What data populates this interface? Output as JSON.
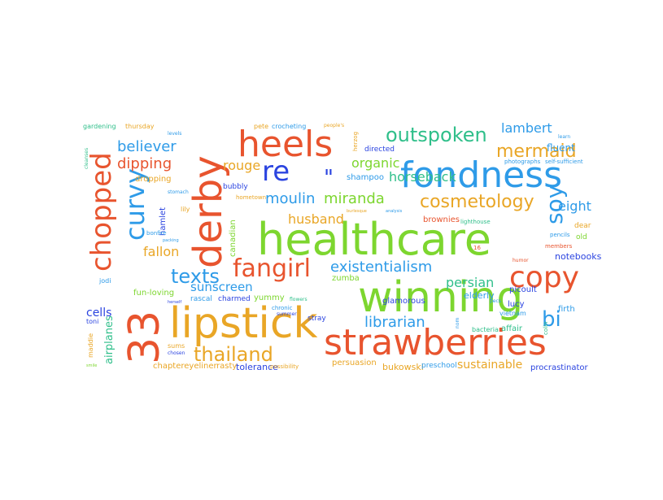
{
  "words": [
    {
      "t": "healthcare",
      "c": "#7dd62f"
    },
    {
      "t": "winning",
      "c": "#7dd62f"
    },
    {
      "t": "strawberries",
      "c": "#e8542e"
    },
    {
      "t": "lipstick",
      "c": "#e9a626"
    },
    {
      "t": "fondness",
      "c": "#2e9be8"
    },
    {
      "t": "heels",
      "c": "#e8542e"
    },
    {
      "t": "derby",
      "c": "#e8542e"
    },
    {
      "t": "33",
      "c": "#e8542e"
    },
    {
      "t": "chopped",
      "c": "#e8542e"
    },
    {
      "t": "re",
      "c": "#2b44e0"
    },
    {
      "t": "copy",
      "c": "#e8542e"
    },
    {
      "t": "curvy",
      "c": "#2e9be8"
    },
    {
      "t": "fangirl",
      "c": "#e8542e"
    },
    {
      "t": "thailand",
      "c": "#e9a626"
    },
    {
      "t": "outspoken",
      "c": "#2fbf8a"
    },
    {
      "t": "mermaid",
      "c": "#e9a626"
    },
    {
      "t": "texts",
      "c": "#2e9be8"
    },
    {
      "t": "soy",
      "c": "#2e9be8"
    },
    {
      "t": "bi",
      "c": "#2e9be8"
    },
    {
      "t": "cosmetology",
      "c": "#e9a626"
    },
    {
      "t": "existentialism",
      "c": "#2e9be8"
    },
    {
      "t": "librarian",
      "c": "#2e9be8"
    },
    {
      "t": "moulin",
      "c": "#2e9be8"
    },
    {
      "t": "miranda",
      "c": "#7dd62f"
    },
    {
      "t": "believer",
      "c": "#2e9be8"
    },
    {
      "t": "dipping",
      "c": "#e8542e"
    },
    {
      "t": "persian",
      "c": "#2fbf8a"
    },
    {
      "t": "sunscreen",
      "c": "#2e9be8"
    },
    {
      "t": "lambert",
      "c": "#2e9be8"
    },
    {
      "t": "horseback",
      "c": "#2fbf8a"
    },
    {
      "t": "sustainable",
      "c": "#e9a626"
    },
    {
      "t": "organic",
      "c": "#7dd62f"
    },
    {
      "t": "husband",
      "c": "#e9a626"
    },
    {
      "t": "rouge",
      "c": "#e9a626"
    },
    {
      "t": "fallon",
      "c": "#e9a626"
    },
    {
      "t": "eight",
      "c": "#2e9be8"
    },
    {
      "t": "cells",
      "c": "#2b44e0"
    },
    {
      "t": "airplanes",
      "c": "#2fbf8a"
    },
    {
      "t": "fluent",
      "c": "#2e9be8"
    },
    {
      "t": "\"",
      "c": "#2b44e0"
    },
    {
      "t": "notebooks",
      "c": "#2b44e0"
    },
    {
      "t": "tolerance",
      "c": "#2b44e0"
    },
    {
      "t": "bukowski",
      "c": "#e9a626"
    },
    {
      "t": "firth",
      "c": "#2e9be8"
    },
    {
      "t": "picoult",
      "c": "#2b44e0"
    },
    {
      "t": "elderly",
      "c": "#2e9be8"
    },
    {
      "t": "rasty",
      "c": "#e9a626"
    },
    {
      "t": "chaptereyeliner",
      "c": "#e9a626"
    },
    {
      "t": "fun-loving",
      "c": "#7dd62f"
    },
    {
      "t": "shampoo",
      "c": "#2e9be8"
    },
    {
      "t": "hamlet",
      "c": "#2b44e0"
    },
    {
      "t": "canadian",
      "c": "#7dd62f"
    },
    {
      "t": "dropping",
      "c": "#e9a626"
    },
    {
      "t": "brownies",
      "c": "#e8542e"
    },
    {
      "t": "zumba",
      "c": "#7dd62f"
    },
    {
      "t": "lucy",
      "c": "#2b44e0"
    },
    {
      "t": "vietnam",
      "c": "#2e9be8"
    },
    {
      "t": "glamorous",
      "c": "#2b44e0"
    },
    {
      "t": "procrastinator",
      "c": "#2b44e0"
    },
    {
      "t": "affair",
      "c": "#2fbf8a"
    },
    {
      "t": "preschool",
      "c": "#2e9be8"
    },
    {
      "t": "persuasion",
      "c": "#e9a626"
    },
    {
      "t": "charmed",
      "c": "#2b44e0"
    },
    {
      "t": "thursday",
      "c": "#e9a626"
    },
    {
      "t": "gardening",
      "c": "#2fbf8a"
    },
    {
      "t": "pete",
      "c": "#e9a626"
    },
    {
      "t": "crocheting",
      "c": "#2e9be8"
    },
    {
      "t": "directed",
      "c": "#2b44e0"
    },
    {
      "t": "bubbly",
      "c": "#2b44e0"
    },
    {
      "t": "yummy",
      "c": "#7dd62f"
    },
    {
      "t": "stray",
      "c": "#2b44e0"
    },
    {
      "t": "chronic",
      "c": "#2e9be8"
    },
    {
      "t": "rascal",
      "c": "#2e9be8"
    },
    {
      "t": "toni",
      "c": "#2b44e0"
    },
    {
      "t": "maddie",
      "c": "#e9a626"
    },
    {
      "t": "jodi",
      "c": "#2e9be8"
    },
    {
      "t": "lighthouse",
      "c": "#2fbf8a"
    },
    {
      "t": "dear",
      "c": "#e9a626"
    },
    {
      "t": "old",
      "c": "#7dd62f"
    },
    {
      "t": "bacteria",
      "c": "#2fbf8a"
    },
    {
      "t": "self-sufficient",
      "c": "#2e9be8"
    },
    {
      "t": "photographs",
      "c": "#2e9be8"
    },
    {
      "t": "bonfire",
      "c": "#2e9be8"
    },
    {
      "t": "hometown",
      "c": "#e9a626"
    },
    {
      "t": "lily",
      "c": "#e9a626"
    },
    {
      "t": "sums",
      "c": "#e9a626"
    },
    {
      "t": "flowers",
      "c": "#2fbf8a"
    },
    {
      "t": "summer",
      "c": "#2b44e0"
    },
    {
      "t": "possibility",
      "c": "#e9a626"
    },
    {
      "t": "members",
      "c": "#e8542e"
    },
    {
      "t": "pencils",
      "c": "#2e9be8"
    },
    {
      "t": "learn",
      "c": "#2e9be8"
    },
    {
      "t": "herzog",
      "c": "#e9a626"
    },
    {
      "t": "humor",
      "c": "#e8542e"
    },
    {
      "t": "16",
      "c": "#e8542e"
    },
    {
      "t": "colin",
      "c": "#2fbf8a"
    },
    {
      "t": "pecs",
      "c": "#2e9be8"
    },
    {
      "t": "people's",
      "c": "#e9a626"
    },
    {
      "t": "levels",
      "c": "#2e9be8"
    },
    {
      "t": "nom",
      "c": "#2e9be8"
    },
    {
      "t": "chosen",
      "c": "#2b44e0"
    },
    {
      "t": "smile",
      "c": "#7dd62f"
    },
    {
      "t": "burlesque",
      "c": "#e9a626"
    },
    {
      "t": "analysis",
      "c": "#2e9be8"
    },
    {
      "t": "stomach",
      "c": "#2e9be8"
    },
    {
      "t": "packing",
      "c": "#2e9be8"
    },
    {
      "t": "herself",
      "c": "#2b44e0"
    },
    {
      "t": "cleanses",
      "c": "#2fbf8a"
    }
  ]
}
